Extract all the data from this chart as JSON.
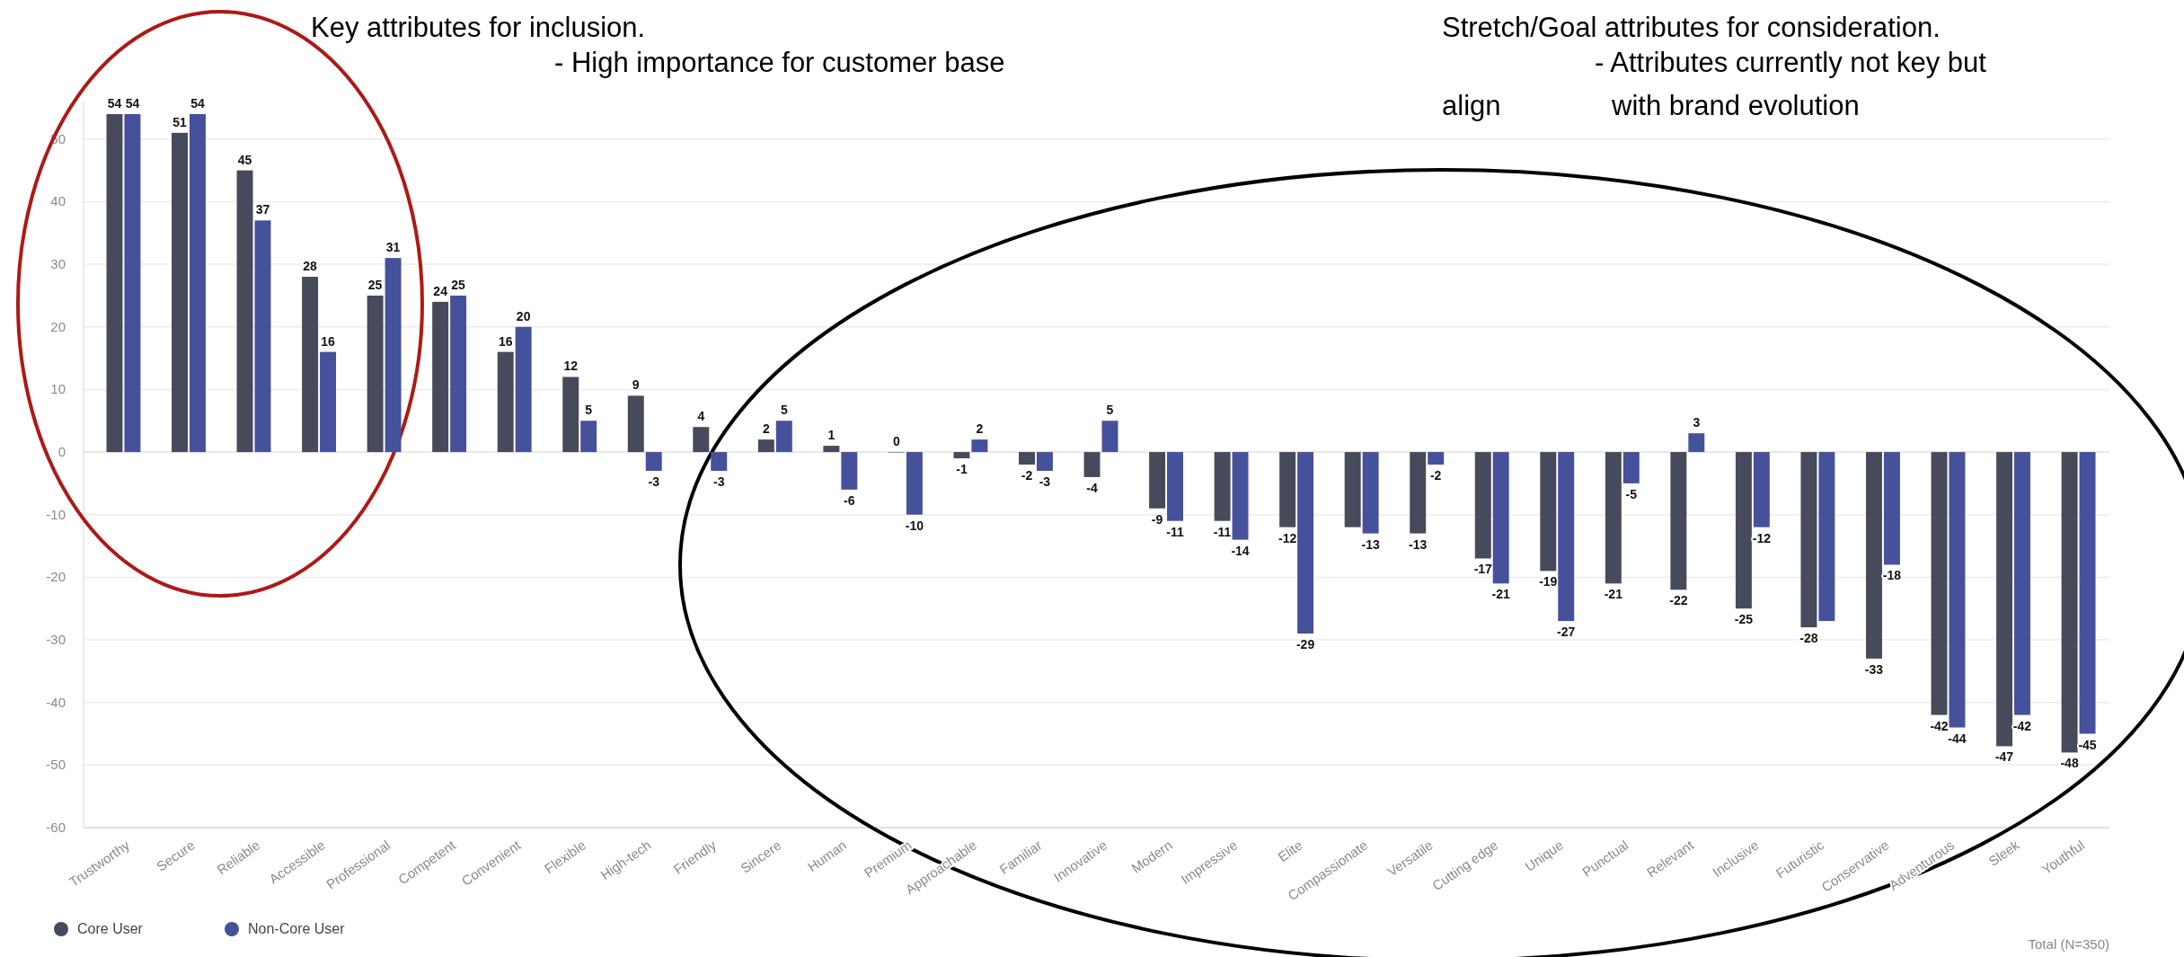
{
  "chart_data": {
    "type": "bar",
    "annotations": [
      "Key attributes for inclusion.",
      "- High importance for customer base",
      "Stretch/Goal attributes for consideration.",
      "- Attributes currently not key but",
      "align",
      "with brand evolution",
      "Total (N=350)"
    ],
    "categories": [
      "Trustworthy",
      "Secure",
      "Reliable",
      "Accessible",
      "Professional",
      "Competent",
      "Convenient",
      "Flexible",
      "High-tech",
      "Friendly",
      "Sincere",
      "Human",
      "Premium",
      "Approachable",
      "Familiar",
      "Innovative",
      "Modern",
      "Impressive",
      "Elite",
      "Compassionate",
      "Versatile",
      "Cutting edge",
      "Unique",
      "Punctual",
      "Relevant",
      "Inclusive",
      "Futuristic",
      "Conservative",
      "Adventurous",
      "Sleek",
      "Youthful"
    ],
    "series": [
      {
        "name": "Core User",
        "color": "#474a5a",
        "values": [
          54,
          51,
          45,
          28,
          25,
          24,
          16,
          12,
          9,
          4,
          2,
          1,
          0,
          -1,
          -2,
          -4,
          -9,
          -11,
          -12,
          -12,
          -13,
          -17,
          -19,
          -21,
          -22,
          -25,
          -28,
          -33,
          -42,
          -47,
          -48
        ],
        "value_labels": [
          "54",
          "51",
          "45",
          "28",
          "25",
          "24",
          "16",
          "12",
          "9",
          "4",
          "2",
          "1",
          "0",
          "-1",
          "-2",
          "-4",
          "-9",
          "-11",
          "-12",
          null,
          "-13",
          "-17",
          "-19",
          "-21",
          "-22",
          "-25",
          "-28",
          "-33",
          "-42",
          "-47",
          "-48"
        ]
      },
      {
        "name": "Non-Core User",
        "color": "#45519a",
        "values": [
          54,
          54,
          37,
          16,
          31,
          25,
          20,
          5,
          -3,
          -3,
          5,
          -6,
          -10,
          2,
          -3,
          5,
          -11,
          -14,
          -29,
          -13,
          -2,
          -21,
          -27,
          -5,
          3,
          -12,
          -27,
          -18,
          -44,
          -42,
          -45
        ],
        "value_labels": [
          "54",
          "54",
          "37",
          "16",
          "31",
          "25",
          "20",
          "5",
          "-3",
          "-3",
          "5",
          "-6",
          "-10",
          "2",
          "-3",
          "5",
          "-11",
          "-14",
          "-29",
          "-13",
          "-2",
          "-21",
          "-27",
          "-5",
          "3",
          "-12",
          null,
          "-18",
          "-44",
          "-42",
          "-45"
        ]
      }
    ],
    "ylim": [
      -60,
      56
    ],
    "yticks": [
      -60,
      -50,
      -40,
      -30,
      -20,
      -10,
      0,
      10,
      20,
      30,
      40,
      50
    ],
    "grid": "y",
    "legend": "bottom left"
  }
}
